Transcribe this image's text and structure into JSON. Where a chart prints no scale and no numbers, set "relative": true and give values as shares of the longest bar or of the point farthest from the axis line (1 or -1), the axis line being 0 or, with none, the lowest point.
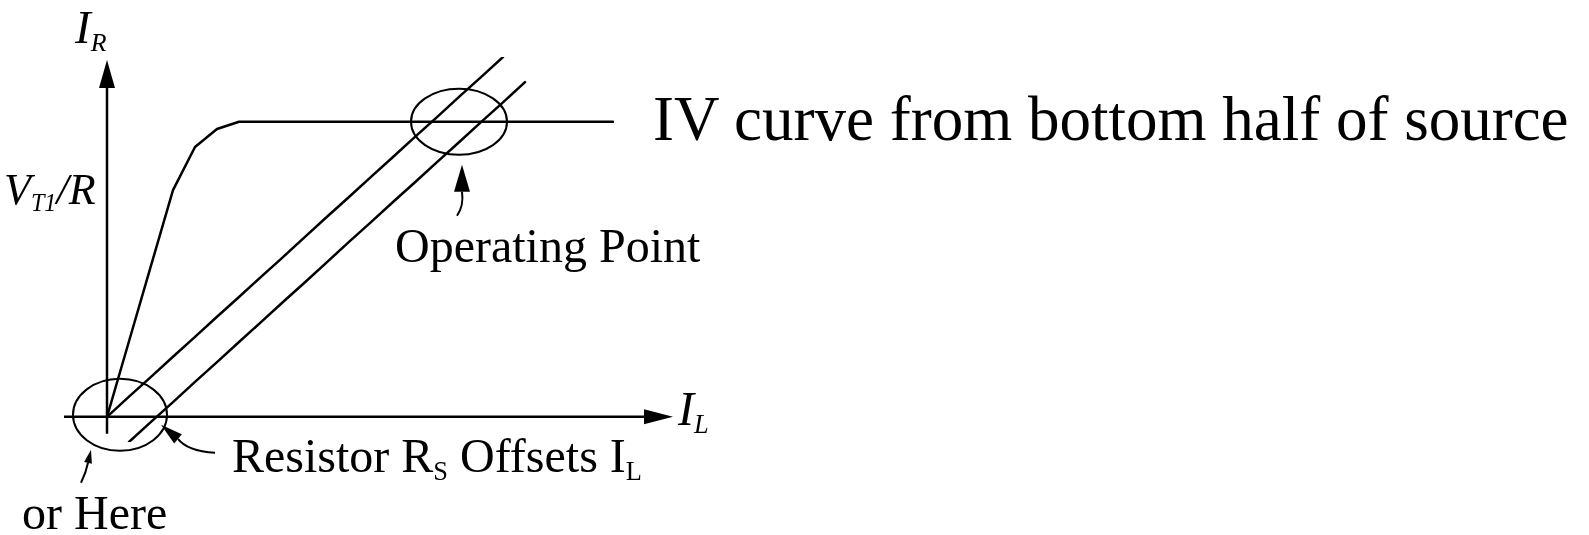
{
  "chart_data": {
    "type": "line",
    "relative": true,
    "xlabel": "I$_{L}$",
    "ylabel": "I$_{R}$",
    "marker": "none",
    "categories": [
      null,
      null,
      null,
      null,
      null,
      null,
      null,
      null,
      null,
      null,
      null,
      null,
      null,
      null,
      null,
      null,
      null,
      null,
      null,
      null,
      null,
      null,
      null,
      null
    ],
    "series": [
      {
        "name": "IV curve from bottom half of source",
        "color": "#000000",
        "values": [
          0,
          0.21,
          0.42,
          0.63,
          0.75,
          0.8,
          0.82,
          0.82,
          0.82,
          0.82,
          0.82,
          0.82,
          0.82,
          0.82,
          0.82,
          0.82,
          0.82,
          0.82,
          0.82,
          0.82,
          0.82,
          0.82,
          0.82,
          0.82
        ]
      },
      {
        "color": "#000000",
        "values": [
          0,
          0.056,
          0.111,
          0.167,
          0.222,
          0.278,
          0.333,
          0.389,
          0.444,
          0.5,
          0.556,
          0.611,
          0.667,
          0.722,
          0.778,
          0.833,
          0.889,
          0.944,
          1,
          null,
          null,
          null,
          null,
          null
        ]
      },
      {
        "color": "#000000",
        "values": [
          null,
          -0.07,
          -0.014,
          0.041,
          0.097,
          0.152,
          0.208,
          0.263,
          0.319,
          0.374,
          0.43,
          0.486,
          0.541,
          0.597,
          0.652,
          0.708,
          0.763,
          0.819,
          0.874,
          0.93,
          null,
          null,
          null,
          null
        ]
      }
    ],
    "annotations": [
      "V$_{T1}$/R",
      {
        "text": "Operating Point",
        "y": 0.82
      },
      "Resistor R$_{S}$ Offsets I$_{L}$",
      "or Here"
    ]
  }
}
